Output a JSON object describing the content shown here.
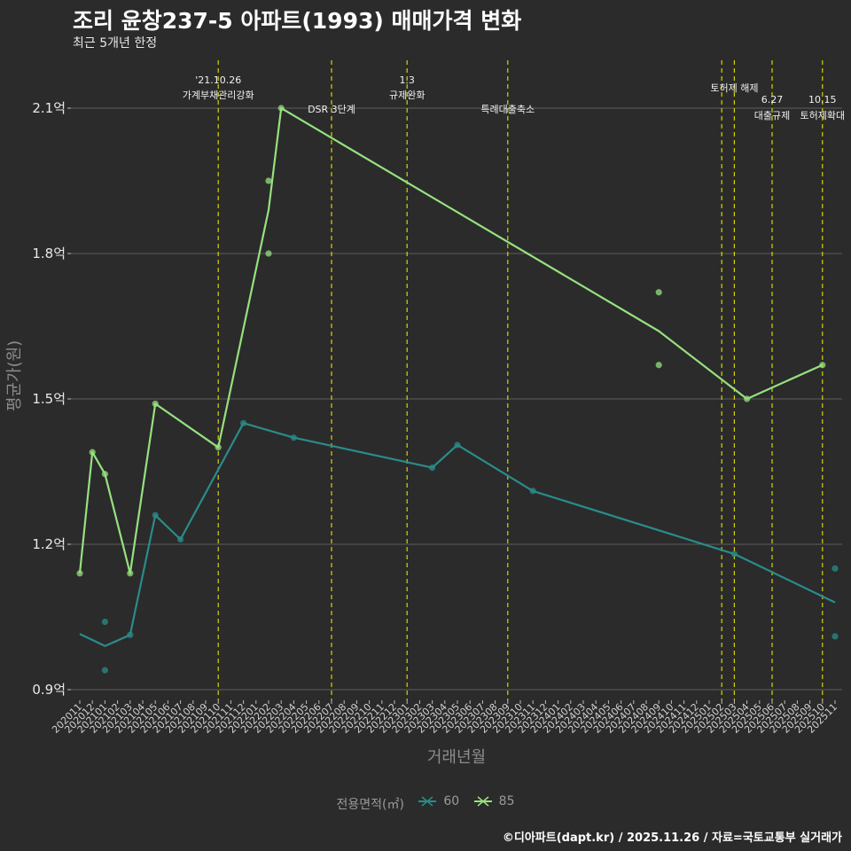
{
  "title": "조리 윤창237-5 아파트(1993) 매매가격 변화",
  "subtitle": "최근 5개년 한정",
  "caption": "©디아파트(dapt.kr) / 2025.11.26 / 자료=국토교통부 실거래가",
  "colors": {
    "background": "#2b2b2c",
    "grid": "#5e5e5e",
    "series60": "#2a8c8a",
    "series85": "#97e07f",
    "policy": "#d4d400",
    "text": "#ffffff",
    "axis": "#bdbdbd"
  },
  "chart_data": {
    "type": "line",
    "title": "조리 윤창237-5 아파트(1993) 매매가격 변화",
    "xlabel": "거래년월",
    "ylabel": "평균가(원)",
    "ylim": [
      0.88,
      2.2
    ],
    "yticks": [
      0.9,
      1.2,
      1.5,
      1.8,
      2.1
    ],
    "ytick_labels": [
      "0.9억",
      "1.2억",
      "1.5억",
      "1.8억",
      "2.1억"
    ],
    "categories": [
      "202011",
      "202012",
      "202101",
      "202102",
      "202103",
      "202104",
      "202105",
      "202106",
      "202107",
      "202108",
      "202109",
      "202110",
      "202111",
      "202112",
      "202201",
      "202202",
      "202203",
      "202204",
      "202205",
      "202206",
      "202207",
      "202208",
      "202209",
      "202210",
      "202211",
      "202212",
      "202301",
      "202302",
      "202303",
      "202304",
      "202305",
      "202306",
      "202307",
      "202308",
      "202309",
      "202310",
      "202311",
      "202312",
      "202401",
      "202402",
      "202403",
      "202404",
      "202405",
      "202406",
      "202407",
      "202408",
      "202409",
      "202410",
      "202411",
      "202412",
      "202501",
      "202502",
      "202503",
      "202504",
      "202505",
      "202506",
      "202507",
      "202508",
      "202509",
      "202510",
      "202511"
    ],
    "legend_title": "전용면적(㎡)",
    "series": [
      {
        "name": "60",
        "line": [
          [
            "202011",
            1.015
          ],
          [
            "202101",
            0.99
          ],
          [
            "202103",
            1.013
          ],
          [
            "202105",
            1.26
          ],
          [
            "202107",
            1.21
          ],
          [
            "202112",
            1.45
          ],
          [
            "202204",
            1.42
          ],
          [
            "202303",
            1.358
          ],
          [
            "202305",
            1.405
          ],
          [
            "202311",
            1.31
          ],
          [
            "202503",
            1.18
          ],
          [
            "202511",
            1.08
          ]
        ],
        "points": [
          [
            "202101",
            1.04
          ],
          [
            "202101",
            0.94
          ],
          [
            "202103",
            1.013
          ],
          [
            "202105",
            1.26
          ],
          [
            "202107",
            1.21
          ],
          [
            "202112",
            1.45
          ],
          [
            "202204",
            1.42
          ],
          [
            "202303",
            1.358
          ],
          [
            "202305",
            1.405
          ],
          [
            "202311",
            1.31
          ],
          [
            "202503",
            1.18
          ],
          [
            "202511",
            1.15
          ],
          [
            "202511",
            1.01
          ]
        ]
      },
      {
        "name": "85",
        "line": [
          [
            "202011",
            1.14
          ],
          [
            "202012",
            1.39
          ],
          [
            "202101",
            1.345
          ],
          [
            "202103",
            1.14
          ],
          [
            "202105",
            1.49
          ],
          [
            "202110",
            1.4
          ],
          [
            "202202",
            1.89
          ],
          [
            "202203",
            2.1
          ],
          [
            "202409",
            1.64
          ],
          [
            "202504",
            1.5
          ],
          [
            "202510",
            1.57
          ]
        ],
        "points": [
          [
            "202011",
            1.14
          ],
          [
            "202012",
            1.39
          ],
          [
            "202101",
            1.345
          ],
          [
            "202103",
            1.14
          ],
          [
            "202105",
            1.49
          ],
          [
            "202110",
            1.4
          ],
          [
            "202202",
            1.95
          ],
          [
            "202202",
            1.8
          ],
          [
            "202203",
            2.1
          ],
          [
            "202409",
            1.72
          ],
          [
            "202409",
            1.57
          ],
          [
            "202504",
            1.5
          ],
          [
            "202510",
            1.57
          ]
        ]
      }
    ],
    "annotations": [
      {
        "x": "202110",
        "label_top": "'21.10.26",
        "label_bottom": "가계부채관리강화",
        "level": "upper"
      },
      {
        "x": "202207",
        "label_top": "",
        "label_bottom": "DSR 3단계",
        "level": "lower"
      },
      {
        "x": "202301",
        "label_top": "1.3",
        "label_bottom": "규제완화",
        "level": "upper"
      },
      {
        "x": "202309",
        "label_top": "",
        "label_bottom": "특례대출축소",
        "level": "lower"
      },
      {
        "x": "202502",
        "label_top": "",
        "label_bottom": "",
        "level": "none"
      },
      {
        "x": "202503",
        "label_top": "",
        "label_bottom": "토허제 해제",
        "level": "upper"
      },
      {
        "x": "202506",
        "label_top": "6.27",
        "label_bottom": "대출규제",
        "level": "lower"
      },
      {
        "x": "202510",
        "label_top": "10.15",
        "label_bottom": "토허제확대",
        "level": "lower"
      }
    ]
  }
}
